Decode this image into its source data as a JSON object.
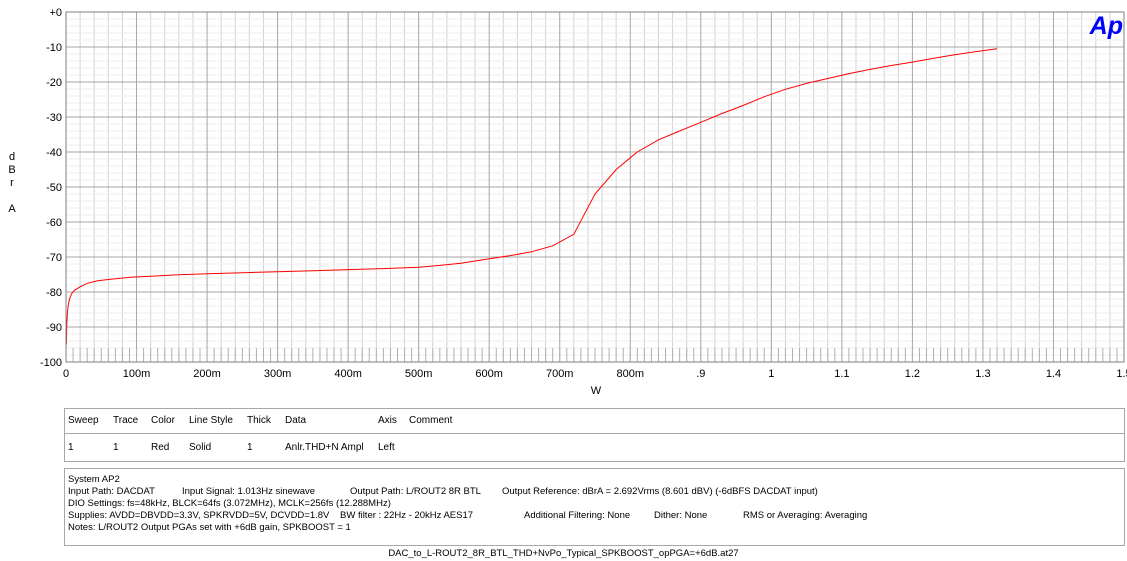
{
  "chart_data": {
    "type": "line",
    "xlabel": "W",
    "ylabel": "dBr A",
    "ylabel_lines": [
      "d",
      "B",
      "r",
      "",
      "A"
    ],
    "xlim": [
      0,
      1.5
    ],
    "ylim": [
      -100,
      0
    ],
    "x_ticks": [
      {
        "value": 0,
        "label": "0"
      },
      {
        "value": 0.1,
        "label": "100m"
      },
      {
        "value": 0.2,
        "label": "200m"
      },
      {
        "value": 0.3,
        "label": "300m"
      },
      {
        "value": 0.4,
        "label": "400m"
      },
      {
        "value": 0.5,
        "label": "500m"
      },
      {
        "value": 0.6,
        "label": "600m"
      },
      {
        "value": 0.7,
        "label": "700m"
      },
      {
        "value": 0.8,
        "label": "800m"
      },
      {
        "value": 0.9,
        "label": ".9"
      },
      {
        "value": 1.0,
        "label": "1"
      },
      {
        "value": 1.1,
        "label": "1.1"
      },
      {
        "value": 1.2,
        "label": "1.2"
      },
      {
        "value": 1.3,
        "label": "1.3"
      },
      {
        "value": 1.4,
        "label": "1.4"
      },
      {
        "value": 1.5,
        "label": "1.5"
      }
    ],
    "y_ticks": [
      {
        "value": 0,
        "label": "+0"
      },
      {
        "value": -10,
        "label": "-10"
      },
      {
        "value": -20,
        "label": "-20"
      },
      {
        "value": -30,
        "label": "-30"
      },
      {
        "value": -40,
        "label": "-40"
      },
      {
        "value": -50,
        "label": "-50"
      },
      {
        "value": -60,
        "label": "-60"
      },
      {
        "value": -70,
        "label": "-70"
      },
      {
        "value": -80,
        "label": "-80"
      },
      {
        "value": -90,
        "label": "-90"
      },
      {
        "value": -100,
        "label": "-100"
      }
    ],
    "grid": true,
    "series": [
      {
        "color": "#ff0000",
        "x": [
          0.0005,
          0.001,
          0.002,
          0.003,
          0.005,
          0.008,
          0.012,
          0.02,
          0.03,
          0.045,
          0.065,
          0.09,
          0.12,
          0.16,
          0.2,
          0.25,
          0.3,
          0.35,
          0.4,
          0.45,
          0.5,
          0.53,
          0.56,
          0.6,
          0.63,
          0.66,
          0.69,
          0.72,
          0.75,
          0.78,
          0.81,
          0.84,
          0.87,
          0.9,
          0.93,
          0.96,
          0.99,
          1.02,
          1.05,
          1.08,
          1.11,
          1.14,
          1.17,
          1.2,
          1.23,
          1.26,
          1.29,
          1.32
        ],
        "y": [
          -95,
          -90,
          -86,
          -84,
          -82,
          -80.5,
          -79.5,
          -78.5,
          -77.5,
          -76.8,
          -76.3,
          -75.8,
          -75.5,
          -75.1,
          -74.8,
          -74.5,
          -74.2,
          -73.9,
          -73.6,
          -73.3,
          -72.9,
          -72.4,
          -71.8,
          -70.5,
          -69.6,
          -68.5,
          -66.8,
          -63.5,
          -52,
          -45,
          -40,
          -36.5,
          -34,
          -31.5,
          -29,
          -26.7,
          -24.2,
          -22.1,
          -20.4,
          -19,
          -17.6,
          -16.4,
          -15.3,
          -14.3,
          -13.2,
          -12.2,
          -11.3,
          -10.5
        ]
      }
    ]
  },
  "logo": {
    "text": "Ap",
    "color": "#0000ff"
  },
  "legend": {
    "headers": [
      "Sweep",
      "Trace",
      "Color",
      "Line Style",
      "Thick",
      "Data",
      "Axis",
      "Comment"
    ],
    "rows": [
      [
        "1",
        "1",
        "Red",
        "Solid",
        "1",
        "Anlr.THD+N Ampl",
        "Left",
        ""
      ]
    ]
  },
  "info": {
    "line1": "System AP2",
    "line2": [
      "Input Path: DACDAT",
      "Input Signal: 1.013Hz sinewave",
      "Output Path: L/ROUT2 8R BTL",
      "Output Reference: dBrA = 2.692Vrms (8.601 dBV) (-6dBFS DACDAT input)"
    ],
    "line3": "DIO Settings: fs=48kHz, BLCK=64fs (3.072MHz), MCLK=256fs (12.288MHz)",
    "line4": [
      "Supplies: AVDD=DBVDD=3.3V, SPKRVDD=5V, DCVDD=1.8V",
      "BW filter : 22Hz - 20kHz AES17",
      "Additional Filtering: None",
      "Dither: None",
      "RMS or Averaging: Averaging"
    ],
    "line5": "Notes: L/ROUT2 Output PGAs set with +6dB gain, SPKBOOST = 1"
  },
  "filename": "DAC_to_L-ROUT2_8R_BTL_THD+NvPo_Typical_SPKBOOST_opPGA=+6dB.at27"
}
